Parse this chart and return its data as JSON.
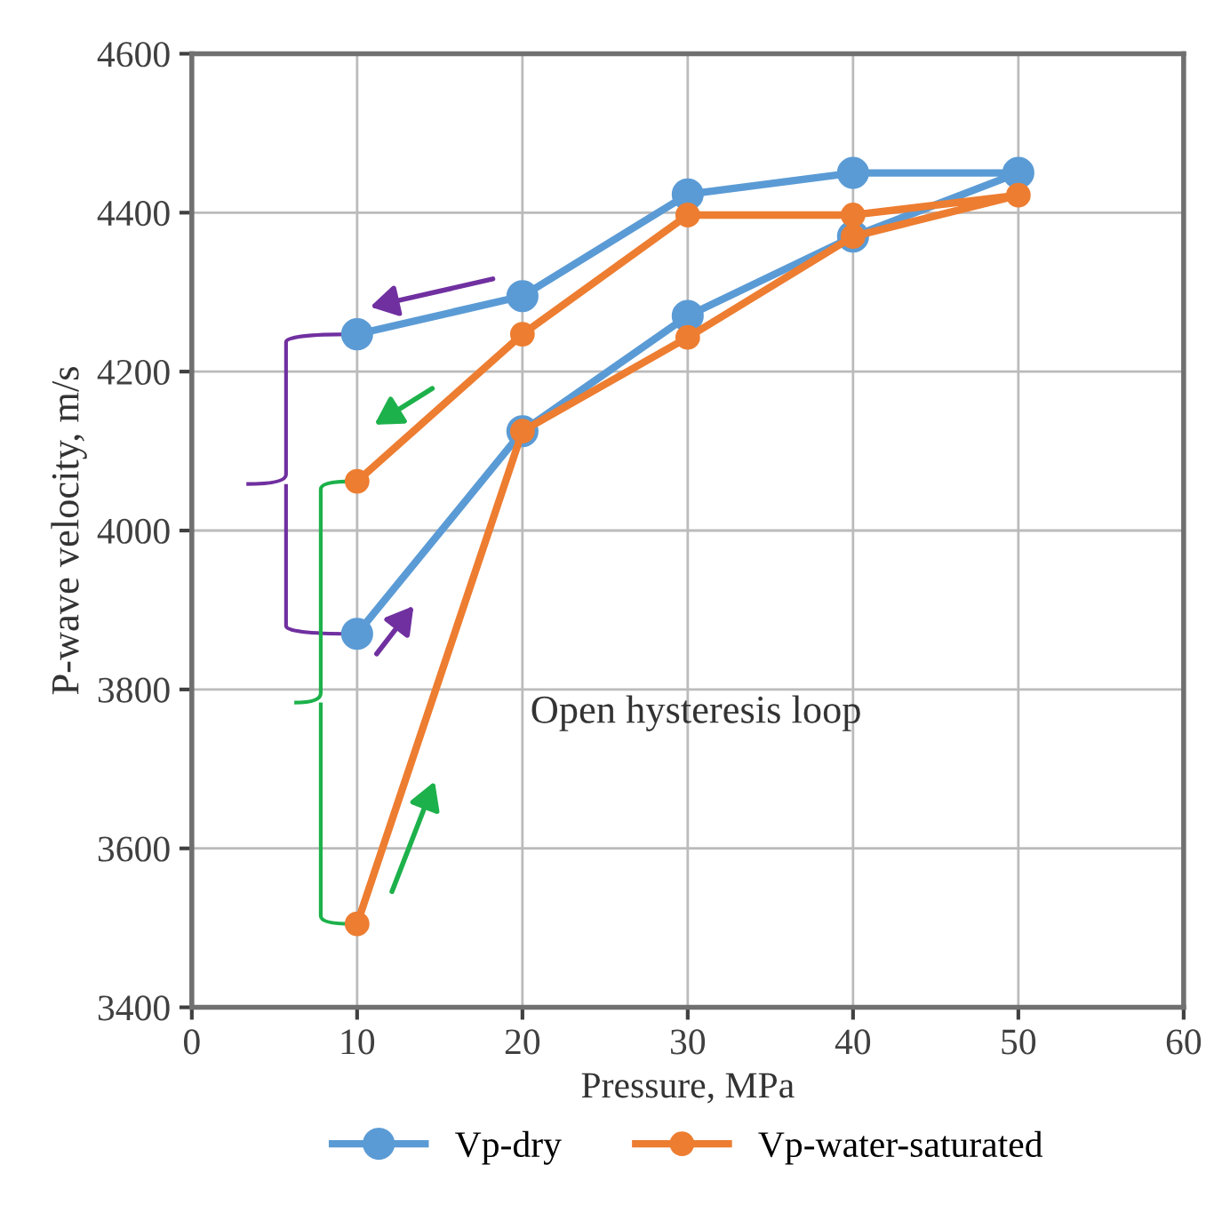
{
  "chart_data": {
    "type": "line",
    "xlabel": "Pressure, MPa",
    "ylabel": "P-wave velocity, m/s",
    "xlim": [
      0,
      60
    ],
    "xticks": [
      0,
      10,
      20,
      30,
      40,
      50,
      60
    ],
    "ylim": [
      3400,
      4600
    ],
    "yticks": [
      3400,
      3600,
      3800,
      4000,
      4200,
      4400,
      4600
    ],
    "grid": true,
    "legend": "bottom",
    "marker": "circle",
    "line_style": "solid",
    "annotations": [
      "Open hysteresis loop"
    ],
    "series": [
      {
        "name": "Vp-dry",
        "color": "#5b9bd5",
        "x": [
          10,
          20,
          30,
          40,
          50,
          40,
          30,
          20,
          10
        ],
        "values": [
          3870,
          4125,
          4270,
          4370,
          4450,
          4450,
          4423,
          4295,
          4247
        ]
      },
      {
        "name": "Vp-water-saturated",
        "color": "#ed7d31",
        "x": [
          10,
          20,
          30,
          40,
          50,
          40,
          30,
          20,
          10
        ],
        "values": [
          3505,
          4125,
          4243,
          4370,
          4422,
          4397,
          4397,
          4247,
          4062
        ]
      }
    ]
  }
}
